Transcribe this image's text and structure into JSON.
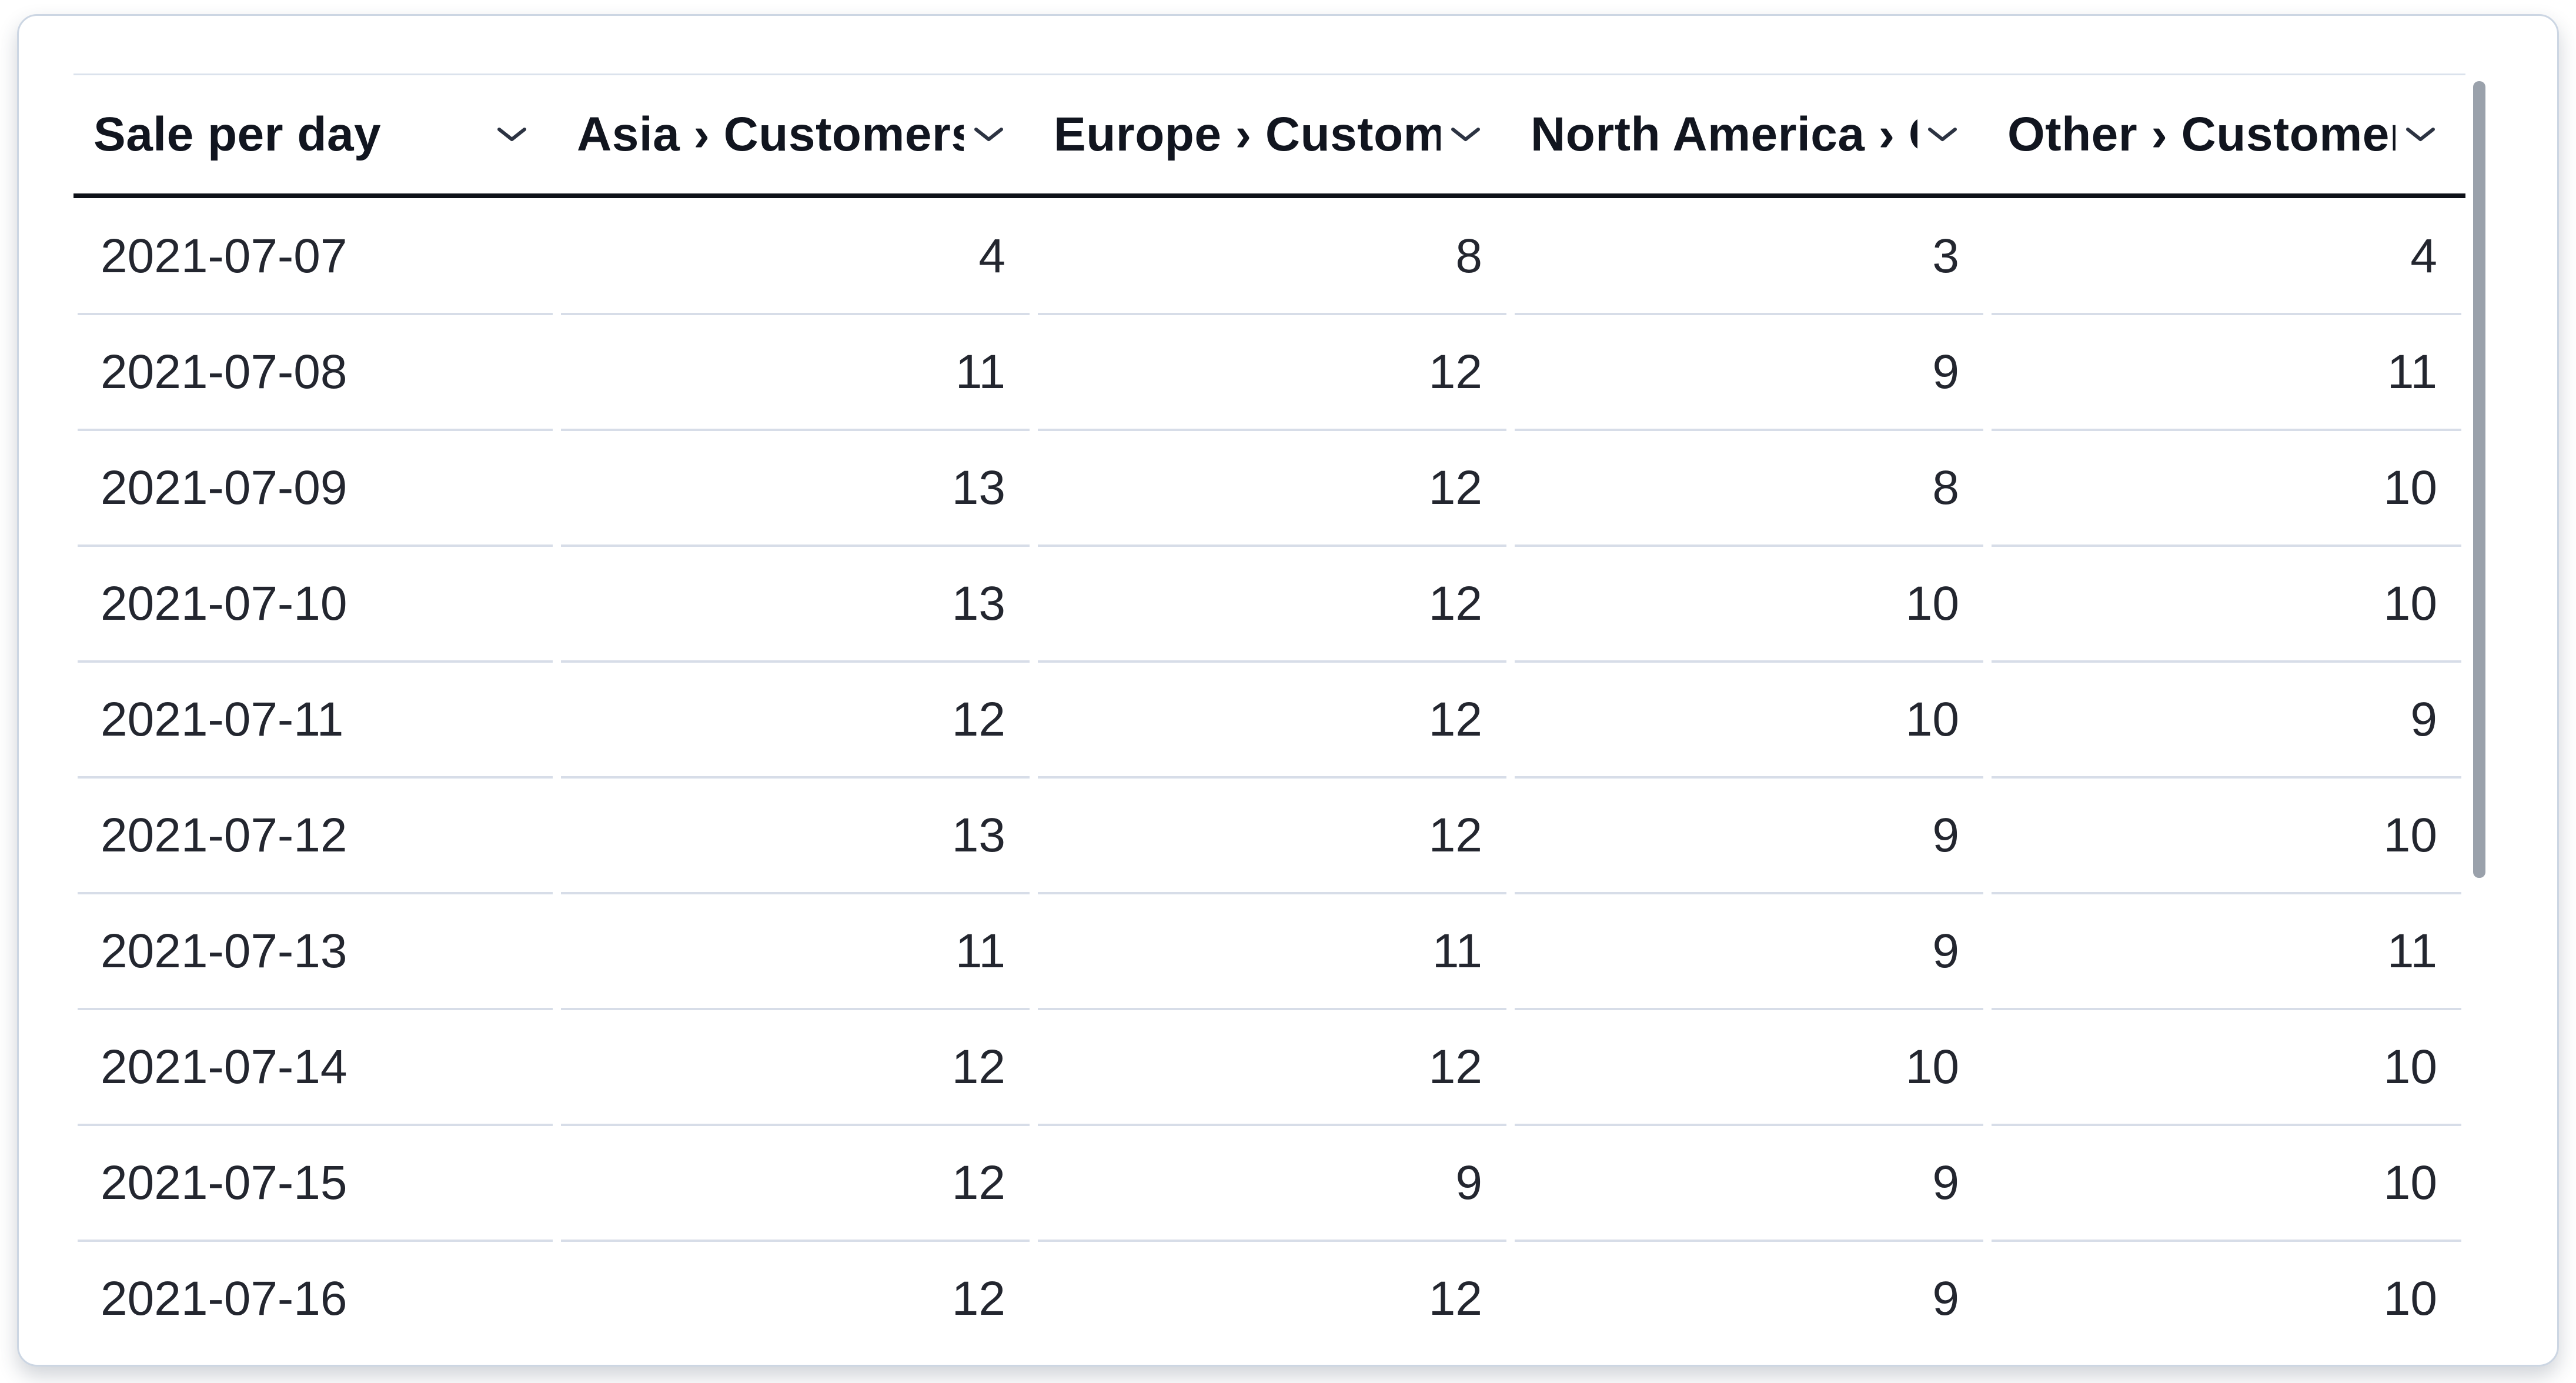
{
  "table": {
    "name": "Sale per day",
    "columns": [
      {
        "id": "date",
        "label": "Sale per day",
        "align": "left"
      },
      {
        "id": "asia",
        "label": "Asia › Customers",
        "align": "right"
      },
      {
        "id": "europe",
        "label": "Europe › Customers",
        "align": "right"
      },
      {
        "id": "north-america",
        "label": "North America › Customers",
        "align": "right"
      },
      {
        "id": "other",
        "label": "Other › Customers",
        "align": "right"
      }
    ],
    "rows": [
      [
        "2021-07-07",
        "4",
        "8",
        "3",
        "4"
      ],
      [
        "2021-07-08",
        "11",
        "12",
        "9",
        "11"
      ],
      [
        "2021-07-09",
        "13",
        "12",
        "8",
        "10"
      ],
      [
        "2021-07-10",
        "13",
        "12",
        "10",
        "10"
      ],
      [
        "2021-07-11",
        "12",
        "12",
        "10",
        "9"
      ],
      [
        "2021-07-12",
        "13",
        "12",
        "9",
        "10"
      ],
      [
        "2021-07-13",
        "11",
        "11",
        "9",
        "11"
      ],
      [
        "2021-07-14",
        "12",
        "12",
        "10",
        "10"
      ],
      [
        "2021-07-15",
        "12",
        "9",
        "9",
        "10"
      ],
      [
        "2021-07-16",
        "12",
        "12",
        "9",
        "10"
      ]
    ]
  },
  "icons": {
    "header_sort_icon": "chevron-down"
  },
  "colors": {
    "header_text": "#11151f",
    "body_text": "#23262f",
    "header_underline": "#0e1118",
    "row_divider": "#d7dde8",
    "table_top_rule": "#dbe2ec",
    "card_border": "#ccd6e3",
    "card_background": "#ffffff",
    "scrollbar_thumb": "#9aa1ab",
    "chevron_stroke": "#2c3342"
  }
}
